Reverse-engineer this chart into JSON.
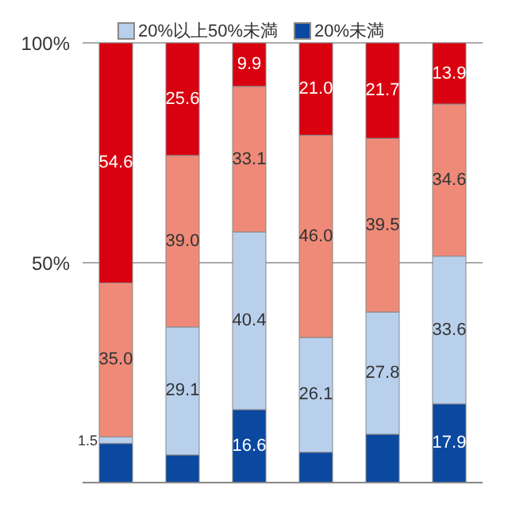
{
  "chart_data": {
    "type": "bar",
    "stacked": true,
    "categories": [
      null,
      null,
      null,
      null,
      null,
      null
    ],
    "series": [
      {
        "name": "20%未満",
        "color": "#0b48a0",
        "values": [
          8.9,
          6.3,
          16.6,
          6.9,
          11.0,
          17.9
        ],
        "value_labels": [
          null,
          null,
          "16.6",
          null,
          null,
          "17.9"
        ]
      },
      {
        "name": "20%以上50%未満",
        "color": "#b8d0ec",
        "values": [
          1.5,
          29.1,
          40.4,
          26.1,
          27.8,
          33.6
        ],
        "value_labels": [
          "1.5",
          "29.1",
          "40.4",
          "26.1",
          "27.8",
          "33.6"
        ]
      },
      {
        "color": "#ef8a78",
        "values": [
          35.0,
          39.0,
          33.1,
          46.0,
          39.5,
          34.6
        ],
        "value_labels": [
          "35.0",
          "39.0",
          "33.1",
          "46.0",
          "39.5",
          "34.6"
        ]
      },
      {
        "color": "#d9000f",
        "values": [
          54.6,
          25.6,
          9.9,
          21.0,
          21.7,
          13.9
        ],
        "value_labels": [
          "54.6",
          "25.6",
          "9.9",
          "21.0",
          "21.7",
          "13.9"
        ]
      }
    ],
    "ylim": [
      0,
      100
    ],
    "yticks": [
      {
        "value": 50,
        "label": "50%"
      },
      {
        "value": 100,
        "label": "100%"
      }
    ],
    "grid": "y",
    "legend": "top"
  }
}
